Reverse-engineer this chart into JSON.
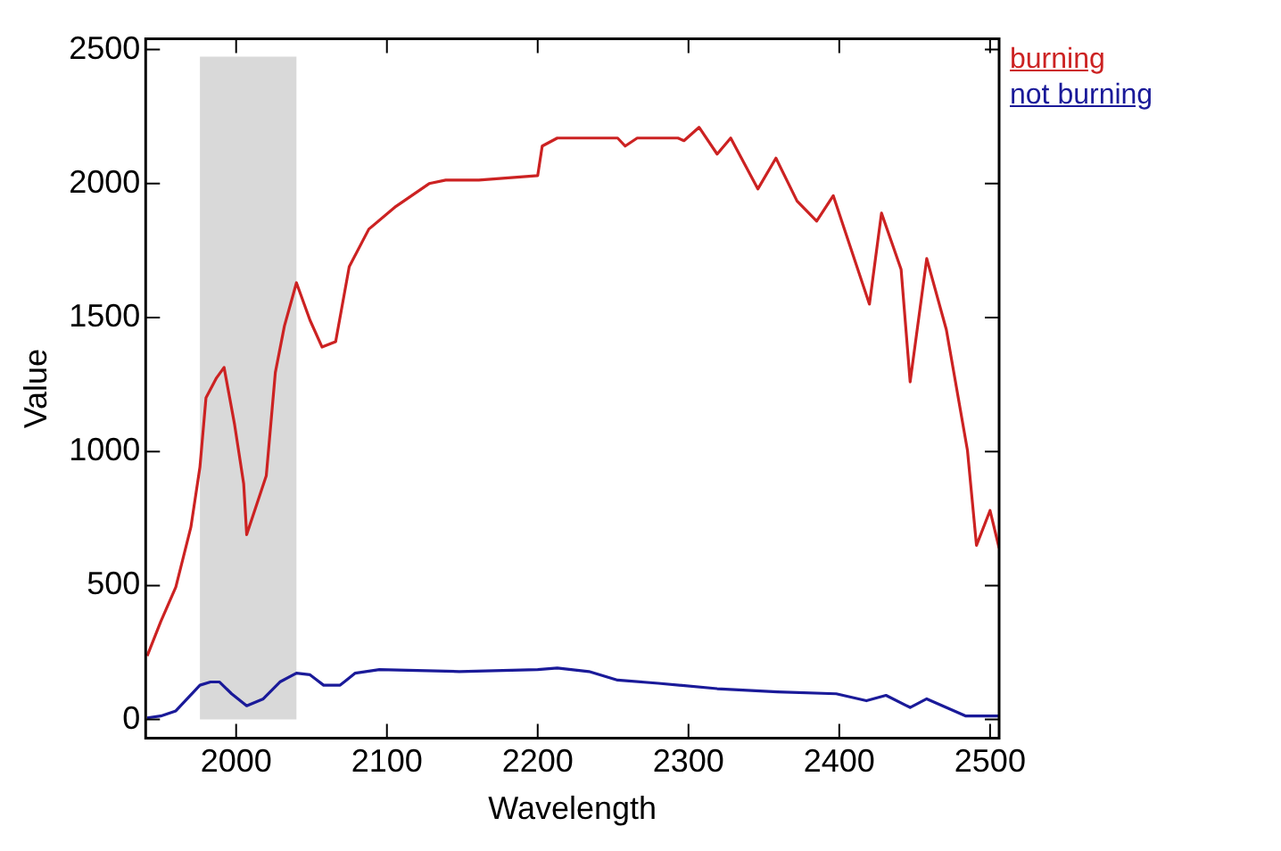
{
  "chart_data": {
    "type": "line",
    "xlabel": "Wavelength",
    "ylabel": "Value",
    "xlim": [
      1940,
      2506
    ],
    "xticks": [
      2000,
      2100,
      2200,
      2300,
      2400,
      2500
    ],
    "ylim": [
      -70,
      2540
    ],
    "yticks": [
      0,
      500,
      1000,
      1500,
      2000,
      2500
    ],
    "grid": false,
    "legend": "top right",
    "marker": "none",
    "line_style": "solid",
    "bands": [
      {
        "axis": "x",
        "from": 1976,
        "to": 2040,
        "color": "#d9d9d9"
      }
    ],
    "series": [
      {
        "name": "burning",
        "color": "#cc2222",
        "x": [
          1941,
          1950,
          1960,
          1970,
          1976,
          1980,
          1987,
          1992,
          1999,
          2005,
          2007,
          2020,
          2026,
          2032,
          2040,
          2049,
          2057,
          2066,
          2075,
          2088,
          2106,
          2128,
          2139,
          2161,
          2200,
          2203,
          2213,
          2253,
          2258,
          2266,
          2293,
          2297,
          2307,
          2319,
          2328,
          2346,
          2358,
          2372,
          2385,
          2396,
          2420,
          2428,
          2441,
          2447,
          2458,
          2471,
          2485,
          2491,
          2500,
          2506
        ],
        "values": [
          237,
          365,
          494,
          718,
          942,
          1200,
          1275,
          1314,
          1100,
          880,
          690,
          910,
          1295,
          1468,
          1630,
          1490,
          1390,
          1410,
          1690,
          1830,
          1915,
          2000,
          2013,
          2013,
          2030,
          2140,
          2170,
          2170,
          2140,
          2170,
          2170,
          2160,
          2210,
          2110,
          2170,
          1980,
          2095,
          1935,
          1860,
          1955,
          1550,
          1890,
          1680,
          1260,
          1720,
          1455,
          1005,
          650,
          780,
          640
        ]
      },
      {
        "name": "not burning",
        "color": "#1a1a99",
        "x": [
          1941,
          1950,
          1960,
          1976,
          1983,
          1989,
          1997,
          2007,
          2018,
          2029,
          2040,
          2049,
          2058,
          2069,
          2079,
          2095,
          2148,
          2200,
          2213,
          2234,
          2253,
          2280,
          2319,
          2359,
          2398,
          2418,
          2431,
          2447,
          2458,
          2484,
          2506
        ],
        "values": [
          6,
          13,
          32,
          128,
          140,
          140,
          96,
          51,
          77,
          140,
          173,
          167,
          128,
          128,
          173,
          186,
          179,
          186,
          192,
          179,
          147,
          135,
          115,
          103,
          96,
          70,
          90,
          45,
          77,
          13,
          13
        ]
      }
    ]
  }
}
